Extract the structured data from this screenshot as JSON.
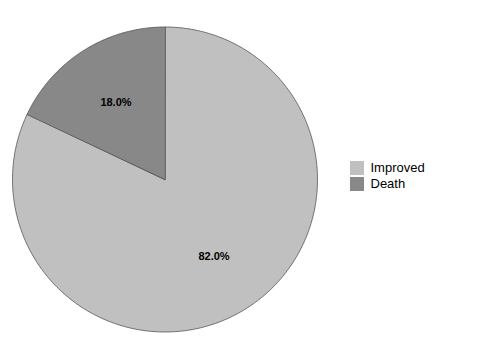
{
  "chart_data": {
    "type": "pie",
    "categories": [
      "Improved",
      "Death"
    ],
    "values": [
      82.0,
      18.0
    ],
    "colors": [
      "#c0c0c0",
      "#888888"
    ],
    "data_labels": true,
    "value_labels": [
      "82.0%",
      "18.0%"
    ],
    "legend": "right"
  }
}
